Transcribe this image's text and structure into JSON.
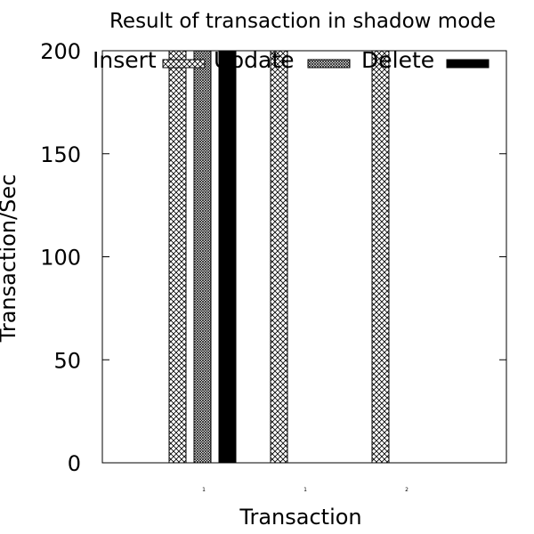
{
  "chart_data": {
    "type": "bar",
    "title": "Result of transaction in shadow mode",
    "xlabel": "Transaction",
    "ylabel": "Transaction/Sec",
    "ylim": [
      0,
      200
    ],
    "yticks": [
      "0",
      "50",
      "100",
      "150",
      "200"
    ],
    "categories": [
      "1",
      "1",
      "2"
    ],
    "series": [
      {
        "name": "Insert",
        "values": [
          200,
          200,
          200
        ],
        "pattern": "crosshatch"
      },
      {
        "name": "Update",
        "values": [
          200,
          null,
          null
        ],
        "pattern": "dense-crosshatch"
      },
      {
        "name": "Delete",
        "values": [
          200,
          null,
          null
        ],
        "pattern": "solid"
      }
    ],
    "legend_position": "top",
    "grid": false,
    "colors": {
      "stroke": "#000000",
      "fill_solid": "#000000",
      "background": "#ffffff"
    }
  }
}
